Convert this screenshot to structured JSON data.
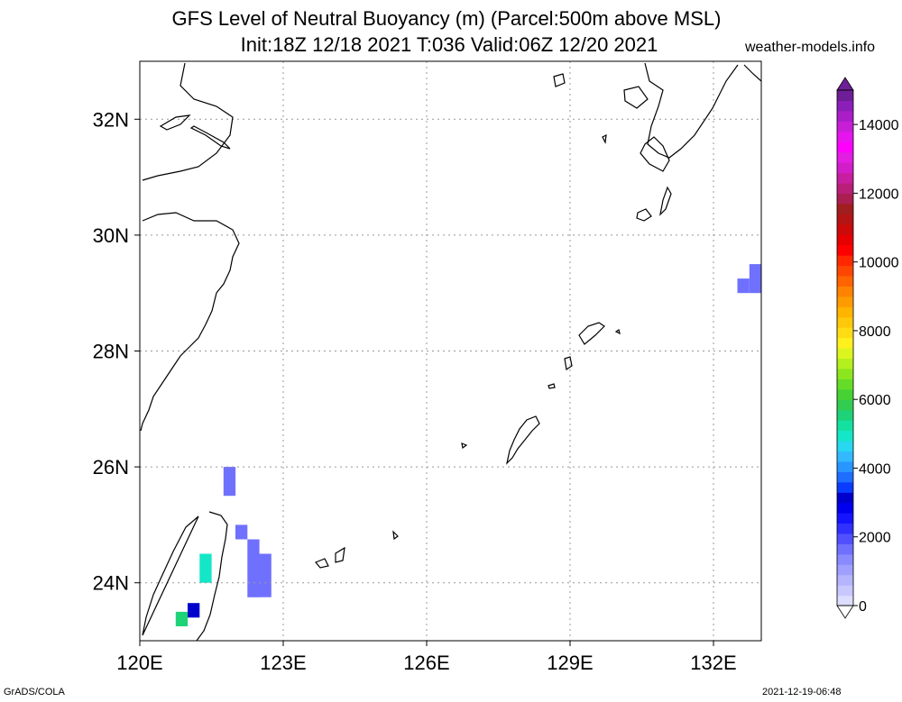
{
  "title_line1": "GFS Level of Neutral Buoyancy (m) (Parcel:500m above MSL)",
  "title_line2": "Init:18Z 12/18 2021 T:036 Valid:06Z 12/20 2021",
  "site": "weather-models.info",
  "footer_left": "GrADS/COLA",
  "footer_right": "2021-12-19-06:48",
  "map": {
    "lon_range": [
      120,
      133
    ],
    "lat_range": [
      23,
      33
    ],
    "lon_ticks": [
      {
        "value": 120,
        "label": "120E"
      },
      {
        "value": 123,
        "label": "123E"
      },
      {
        "value": 126,
        "label": "126E"
      },
      {
        "value": 129,
        "label": "129E"
      },
      {
        "value": 132,
        "label": "132E"
      }
    ],
    "lat_ticks": [
      {
        "value": 24,
        "label": "24N"
      },
      {
        "value": 26,
        "label": "26N"
      },
      {
        "value": 28,
        "label": "28N"
      },
      {
        "value": 30,
        "label": "30N"
      },
      {
        "value": 32,
        "label": "32N"
      }
    ],
    "grid": true
  },
  "colorbar": {
    "labels": [
      "0",
      "2000",
      "4000",
      "6000",
      "8000",
      "10000",
      "12000",
      "14000"
    ],
    "max": 15000,
    "colors": [
      "#ddddff",
      "#c8c8ff",
      "#b4b4ff",
      "#9f9fff",
      "#8a8aff",
      "#7070ff",
      "#5050ff",
      "#3030ff",
      "#1414ff",
      "#0000ee",
      "#0000cc",
      "#0a3cff",
      "#1e6eff",
      "#2896ff",
      "#32b9ff",
      "#28d7f0",
      "#14e6c8",
      "#14e1a0",
      "#1ed278",
      "#32cd50",
      "#46d232",
      "#64dc28",
      "#8ce61e",
      "#b4f01e",
      "#dcf51e",
      "#fff01e",
      "#ffdc14",
      "#ffc80a",
      "#ffb400",
      "#ff9b00",
      "#ff8200",
      "#ff6400",
      "#ff4600",
      "#ff2800",
      "#ff0000",
      "#e60000",
      "#cd0a0a",
      "#b41414",
      "#a01e1e",
      "#aa1e50",
      "#b91e78",
      "#c81ea0",
      "#d21ec8",
      "#e11ee1",
      "#ff00ff",
      "#e614ef",
      "#c81ed7",
      "#aa1ec8",
      "#8c1eb9",
      "#6e1e96"
    ]
  },
  "data_cells": [
    {
      "lon": [
        121.75,
        122.0
      ],
      "lat": [
        25.5,
        26.0
      ],
      "value": 1500
    },
    {
      "lon": [
        122.0,
        122.25
      ],
      "lat": [
        24.75,
        25.0
      ],
      "value": 1500
    },
    {
      "lon": [
        122.25,
        122.5
      ],
      "lat": [
        23.75,
        24.75
      ],
      "value": 1500
    },
    {
      "lon": [
        122.5,
        122.75
      ],
      "lat": [
        23.75,
        24.5
      ],
      "value": 1500
    },
    {
      "lon": [
        132.5,
        132.75
      ],
      "lat": [
        29.0,
        29.25
      ],
      "value": 1500
    },
    {
      "lon": [
        132.75,
        133.0
      ],
      "lat": [
        29.0,
        29.5
      ],
      "value": 1500
    },
    {
      "lon": [
        121.25,
        121.5
      ],
      "lat": [
        24.0,
        24.5
      ],
      "value": 5000
    },
    {
      "lon": [
        121.0,
        121.25
      ],
      "lat": [
        23.4,
        23.65
      ],
      "value": 3000
    },
    {
      "lon": [
        120.75,
        121.0
      ],
      "lat": [
        23.25,
        23.5
      ],
      "value": 5500
    }
  ]
}
